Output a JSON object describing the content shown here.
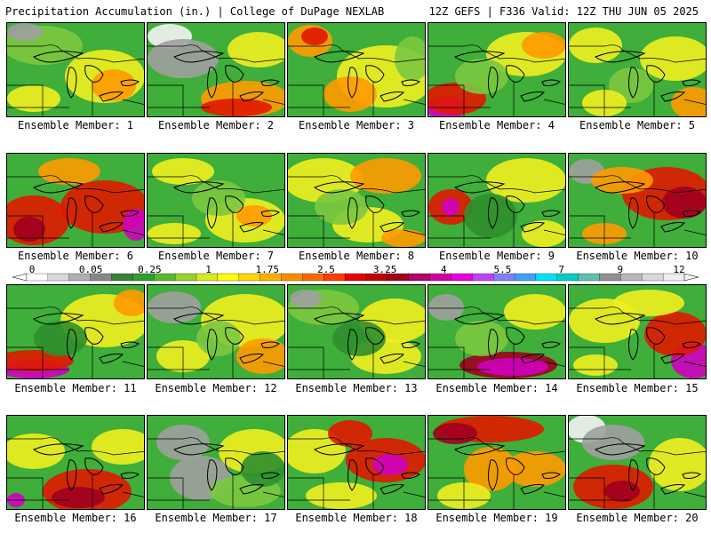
{
  "header": {
    "title": "Precipitation Accumulation (in.) | College of DuPage NEXLAB",
    "run_info": "12Z GEFS | F336 Valid: 12Z THU JUN 05 2025"
  },
  "colorbar": {
    "labels": [
      "0",
      "0.05",
      "0.25",
      "1",
      "1.75",
      "2.5",
      "3.25",
      "4",
      "5.5",
      "7",
      "9",
      "12"
    ],
    "colors": [
      "#ffffff",
      "#d8d8d8",
      "#b0b0b0",
      "#888888",
      "#3a7f3a",
      "#2e9e2e",
      "#58b830",
      "#9ad22a",
      "#d8ea22",
      "#ffff00",
      "#ffd800",
      "#ffb000",
      "#ff8c00",
      "#ff6a00",
      "#ff3c00",
      "#e80000",
      "#c00000",
      "#a00018",
      "#b0006a",
      "#d000a0",
      "#e800e0",
      "#c040ff",
      "#8080ff",
      "#40a0ff",
      "#00e0ff",
      "#00d0c0",
      "#60c0b0",
      "#909090",
      "#b8b8b8",
      "#d8d8d8",
      "#f0f0f0"
    ]
  },
  "palette": {
    "green_dark": "#2f8f2f",
    "green": "#3fae3a",
    "green_light": "#7cc840",
    "yellow": "#f0f020",
    "orange": "#ff9a00",
    "red": "#e01800",
    "dark_red": "#a00020",
    "magenta": "#d000c0",
    "grey": "#a0a0a0",
    "white": "#f4f4f4"
  },
  "members": [
    {
      "label": "Ensemble Member: 1"
    },
    {
      "label": "Ensemble Member: 2"
    },
    {
      "label": "Ensemble Member: 3"
    },
    {
      "label": "Ensemble Member: 4"
    },
    {
      "label": "Ensemble Member: 5"
    },
    {
      "label": "Ensemble Member: 6"
    },
    {
      "label": "Ensemble Member: 7"
    },
    {
      "label": "Ensemble Member: 8"
    },
    {
      "label": "Ensemble Member: 9"
    },
    {
      "label": "Ensemble Member: 10"
    },
    {
      "label": "Ensemble Member: 11"
    },
    {
      "label": "Ensemble Member: 12"
    },
    {
      "label": "Ensemble Member: 13"
    },
    {
      "label": "Ensemble Member: 14"
    },
    {
      "label": "Ensemble Member: 15"
    },
    {
      "label": "Ensemble Member: 16"
    },
    {
      "label": "Ensemble Member: 17"
    },
    {
      "label": "Ensemble Member: 18"
    },
    {
      "label": "Ensemble Member: 19"
    },
    {
      "label": "Ensemble Member: 20"
    }
  ]
}
